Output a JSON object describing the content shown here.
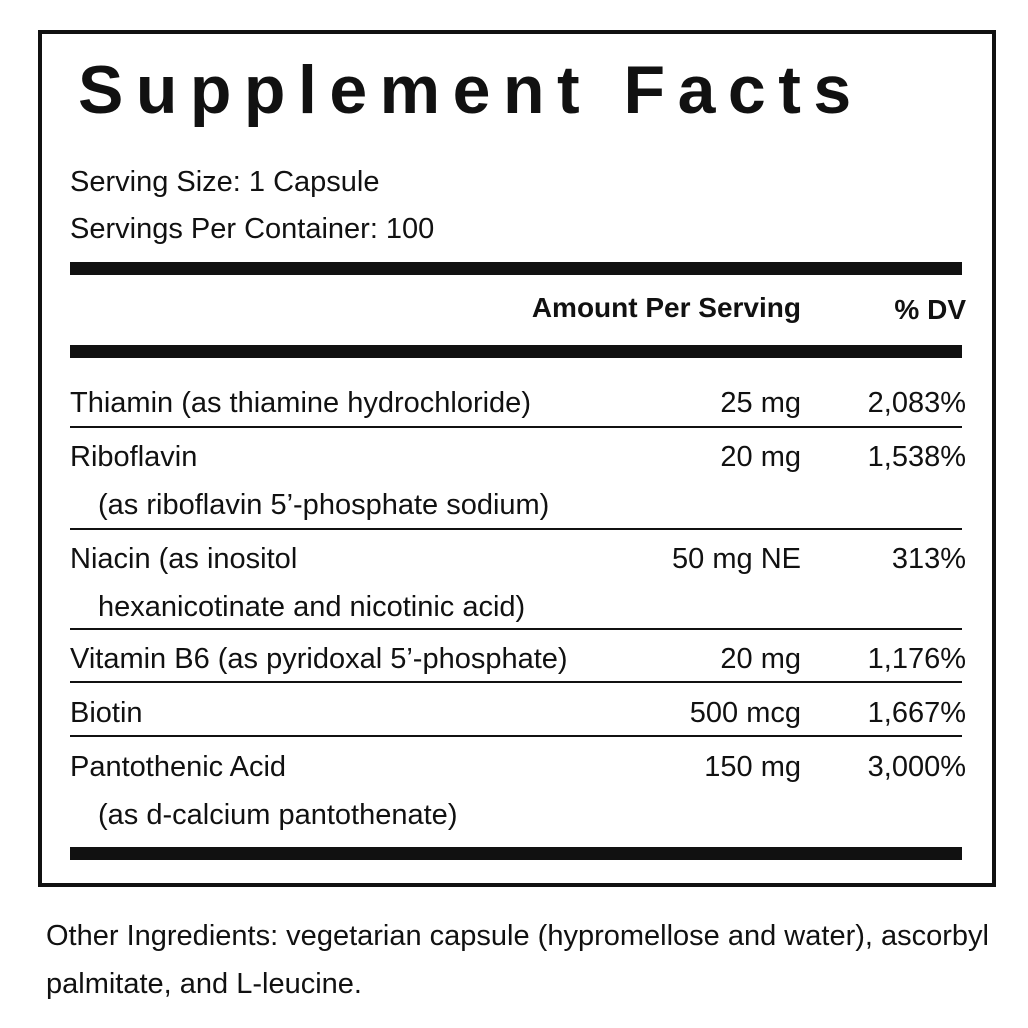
{
  "title": "Supplement Facts",
  "serving_size": "Serving Size: 1 Capsule",
  "servings_per_container": "Servings Per Container: 100",
  "header": {
    "amount": "Amount Per Serving",
    "dv": "% DV"
  },
  "rows": [
    {
      "name": "Thiamin (as thiamine hydrochloride)",
      "sub": "",
      "amount": "25 mg",
      "dv": "2,083%"
    },
    {
      "name": "Riboflavin",
      "sub": "(as riboflavin 5’-phosphate sodium)",
      "amount": "20 mg",
      "dv": "1,538%"
    },
    {
      "name": "Niacin (as inositol",
      "sub": "hexanicotinate and nicotinic acid)",
      "amount": "50 mg NE",
      "dv": "313%"
    },
    {
      "name": "Vitamin B6 (as pyridoxal 5’-phosphate)",
      "sub": "",
      "amount": "20 mg",
      "dv": "1,176%"
    },
    {
      "name": "Biotin",
      "sub": "",
      "amount": "500 mcg",
      "dv": "1,667%"
    },
    {
      "name": "Pantothenic Acid",
      "sub": "(as d-calcium pantothenate)",
      "amount": "150 mg",
      "dv": "3,000%"
    }
  ],
  "other_ingredients": "Other Ingredients: vegetarian capsule (hypromellose and water), ascorbyl palmitate, and L-leucine."
}
